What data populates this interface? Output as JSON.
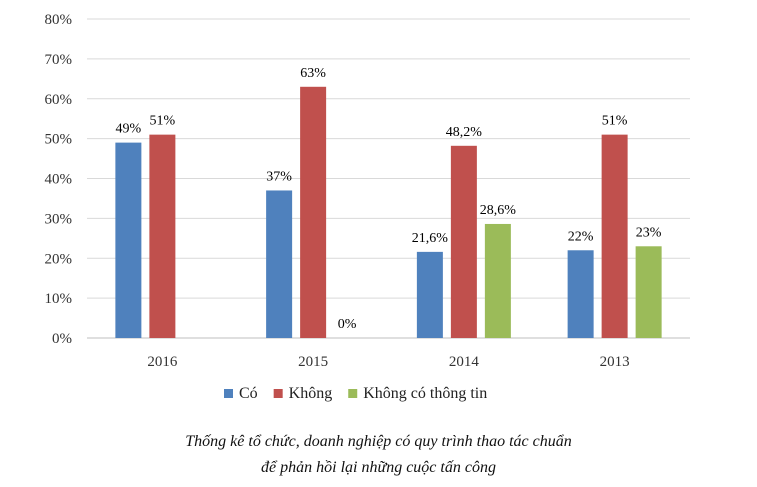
{
  "chart_data": {
    "type": "bar",
    "categories": [
      "2016",
      "2015",
      "2014",
      "2013"
    ],
    "series": [
      {
        "name": "Có",
        "values": [
          49,
          37,
          21.6,
          22
        ],
        "labels": [
          "49%",
          "37%",
          "21,6%",
          "22%"
        ],
        "color": "#4f81bd"
      },
      {
        "name": "Không",
        "values": [
          51,
          63,
          48.2,
          51
        ],
        "labels": [
          "51%",
          "63%",
          "48,2%",
          "51%"
        ],
        "color": "#c0504d"
      },
      {
        "name": "Không có thông tin",
        "values": [
          null,
          0,
          28.6,
          23
        ],
        "labels": [
          null,
          "0%",
          "28,6%",
          "23%"
        ],
        "color": "#9bbb59"
      }
    ],
    "y_ticks": [
      "0%",
      "10%",
      "20%",
      "30%",
      "40%",
      "50%",
      "60%",
      "70%",
      "80%"
    ],
    "ylim": [
      0,
      80
    ],
    "grid": true,
    "legend_position": "bottom"
  },
  "caption": {
    "line1": "Thống kê tổ chức, doanh nghiệp có quy trình thao tác chuẩn",
    "line2": "để phản hồi lại những cuộc tấn công"
  }
}
